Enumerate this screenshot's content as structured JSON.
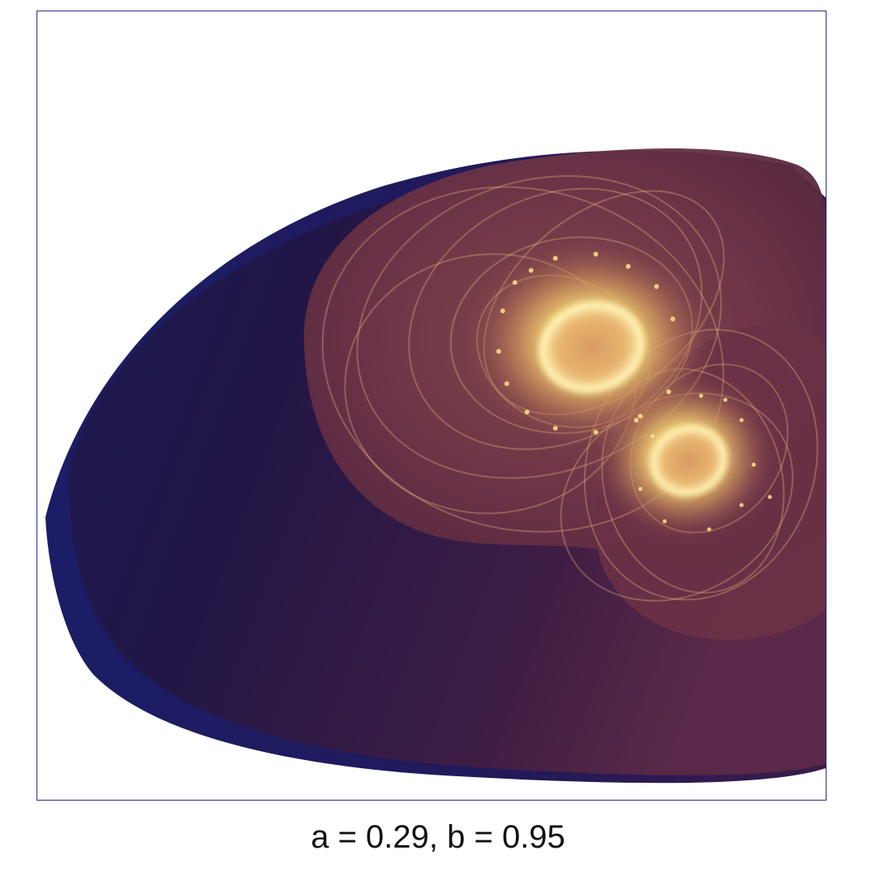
{
  "figure": {
    "caption": "a = 0.29, b = 0.95",
    "parameters": {
      "a": 0.29,
      "b": 0.95
    },
    "colors": {
      "frame_border": "#2b2b8a",
      "background": "#ffffff",
      "deep_blue": "#1a1a4a",
      "dark_indigo": "#221646",
      "plum": "#4a2244",
      "maroon": "#6e3447",
      "glow_gold": "#f6e27a",
      "glow_cream": "#fff1b8"
    }
  }
}
